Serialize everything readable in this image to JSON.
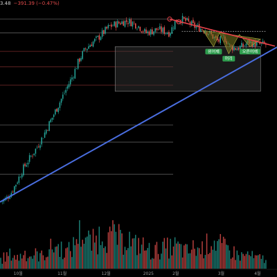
{
  "header": {
    "price_tail": "3.48",
    "change": "−391.39 (−0.47%)"
  },
  "colors": {
    "up": "#26a69a",
    "down": "#ef5350",
    "resistance": "#e8424a",
    "support": "#4a6ee0",
    "pattern": "#8a8a2a",
    "label_bg": "#2e9e4e"
  },
  "chart_data": {
    "type": "candlestick",
    "x_tick_labels": [
      "10월",
      "11월",
      "12월",
      "2025",
      "2월",
      "3월",
      "4월"
    ],
    "pattern_labels": [
      "왼어깨",
      "머리",
      "오른어깨"
    ],
    "trend": [
      [
        0,
        150
      ],
      [
        4,
        160
      ],
      [
        8,
        185
      ],
      [
        12,
        225
      ],
      [
        16,
        265
      ],
      [
        20,
        295
      ],
      [
        24,
        325
      ],
      [
        28,
        360
      ],
      [
        32,
        400
      ],
      [
        36,
        440
      ],
      [
        40,
        480
      ],
      [
        44,
        520
      ],
      [
        48,
        560
      ],
      [
        52,
        610
      ],
      [
        56,
        645
      ],
      [
        60,
        665
      ],
      [
        64,
        680
      ],
      [
        68,
        700
      ],
      [
        72,
        720
      ],
      [
        76,
        728
      ],
      [
        80,
        735
      ],
      [
        84,
        738
      ],
      [
        88,
        732
      ],
      [
        92,
        720
      ],
      [
        96,
        700
      ],
      [
        100,
        705
      ],
      [
        104,
        712
      ],
      [
        108,
        706
      ],
      [
        112,
        700
      ],
      [
        116,
        740
      ],
      [
        120,
        745
      ],
      [
        124,
        735
      ],
      [
        128,
        722
      ],
      [
        132,
        715
      ],
      [
        136,
        708
      ],
      [
        140,
        690
      ],
      [
        144,
        672
      ],
      [
        148,
        685
      ],
      [
        152,
        655
      ],
      [
        156,
        650
      ],
      [
        160,
        656
      ],
      [
        164,
        670
      ],
      [
        168,
        666
      ],
      [
        172,
        662
      ]
    ],
    "volume": [
      [
        0,
        0.2
      ],
      [
        4,
        0.3
      ],
      [
        8,
        0.35
      ],
      [
        12,
        0.25
      ],
      [
        16,
        0.4
      ],
      [
        20,
        0.3
      ],
      [
        24,
        0.35
      ],
      [
        28,
        0.3
      ],
      [
        32,
        0.45
      ],
      [
        36,
        0.55
      ],
      [
        40,
        0.5
      ],
      [
        44,
        0.4
      ],
      [
        48,
        0.5
      ],
      [
        52,
        0.9
      ],
      [
        56,
        0.8
      ],
      [
        60,
        0.6
      ],
      [
        64,
        0.7
      ],
      [
        68,
        0.95
      ],
      [
        72,
        0.7
      ],
      [
        76,
        0.9
      ],
      [
        80,
        0.6
      ],
      [
        84,
        0.8
      ],
      [
        88,
        0.55
      ],
      [
        92,
        0.6
      ],
      [
        96,
        0.5
      ],
      [
        100,
        0.4
      ],
      [
        104,
        0.45
      ],
      [
        108,
        0.5
      ],
      [
        112,
        0.5
      ],
      [
        116,
        0.55
      ],
      [
        120,
        0.45
      ],
      [
        124,
        0.4
      ],
      [
        128,
        0.5
      ],
      [
        132,
        0.45
      ],
      [
        136,
        0.55
      ],
      [
        140,
        0.7
      ],
      [
        144,
        0.6
      ],
      [
        148,
        0.5
      ],
      [
        152,
        0.45
      ],
      [
        156,
        0.35
      ],
      [
        160,
        0.3
      ],
      [
        164,
        0.35
      ],
      [
        168,
        0.25
      ],
      [
        172,
        0.25
      ]
    ],
    "resistance_line": [
      [
        112,
        745
      ],
      [
        176,
        675
      ]
    ],
    "support_line": [
      [
        0,
        150
      ],
      [
        176,
        640
      ]
    ],
    "horizontal_levels": [
      {
        "kind": "support",
        "value": 745
      },
      {
        "kind": "support",
        "value": 700
      },
      {
        "kind": "resistance",
        "value": 640
      },
      {
        "kind": "resistance",
        "value": 590
      },
      {
        "kind": "resistance",
        "value": 530
      },
      {
        "kind": "support",
        "value": 400
      },
      {
        "kind": "support",
        "value": 345
      },
      {
        "kind": "support",
        "value": 240
      }
    ],
    "box_zone": {
      "x_from": 76,
      "x_to": 172,
      "y_from": 510,
      "y_to": 655
    },
    "resistance_dashed": {
      "x_from": 120,
      "x_to": 176,
      "value": 705
    },
    "marker_points": [
      [
        112,
        745
      ],
      [
        118,
        736
      ]
    ],
    "head_shoulders": {
      "outline": [
        [
          134,
          708
        ],
        [
          141,
          655
        ],
        [
          145,
          700
        ],
        [
          151,
          632
        ],
        [
          158,
          695
        ],
        [
          165,
          655
        ],
        [
          172,
          680
        ]
      ]
    },
    "y_range": [
      120,
      780
    ],
    "x_range": [
      0,
      176
    ],
    "volume_max": 1.0,
    "grid": false,
    "legend": "none"
  }
}
